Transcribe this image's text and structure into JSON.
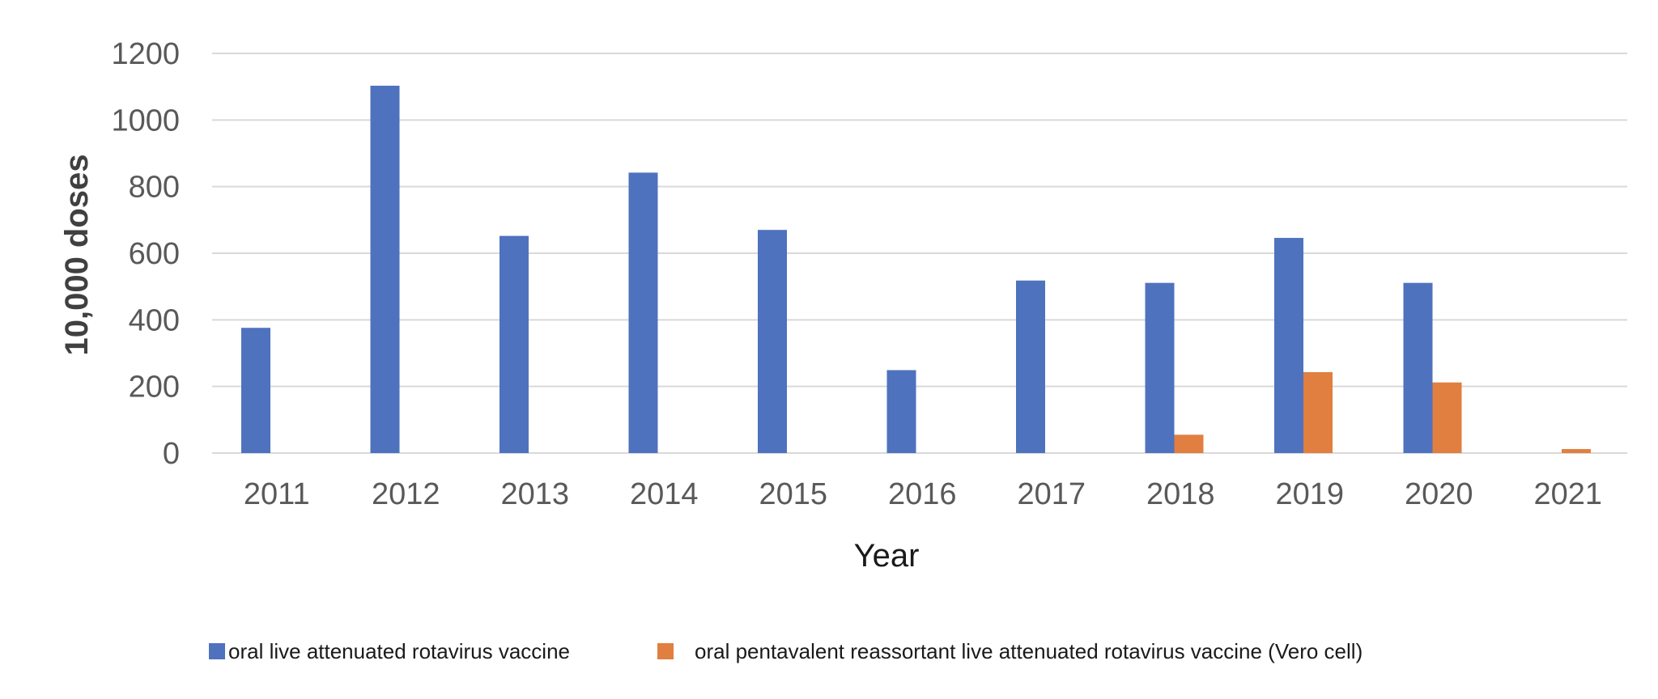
{
  "chart_data": {
    "type": "bar",
    "title": "",
    "xlabel": "Year",
    "ylabel": "10,000 doses",
    "ylim": [
      0,
      1200
    ],
    "yticks": [
      0,
      200,
      400,
      600,
      800,
      1000,
      1200
    ],
    "grid": true,
    "legend_position": "bottom",
    "categories": [
      "2011",
      "2012",
      "2013",
      "2014",
      "2015",
      "2016",
      "2017",
      "2018",
      "2019",
      "2020",
      "2021"
    ],
    "series": [
      {
        "name": "oral live attenuated rotavirus vaccine",
        "color": "#4f72be",
        "values": [
          376,
          1103,
          652,
          842,
          670,
          249,
          518,
          511,
          646,
          511,
          0
        ]
      },
      {
        "name": "oral pentavalent reassortant live attenuated rotavirus vaccine (Vero cell)",
        "color": "#e07f3f",
        "values": [
          0,
          0,
          0,
          0,
          0,
          0,
          0,
          55,
          243,
          212,
          12
        ]
      }
    ]
  }
}
